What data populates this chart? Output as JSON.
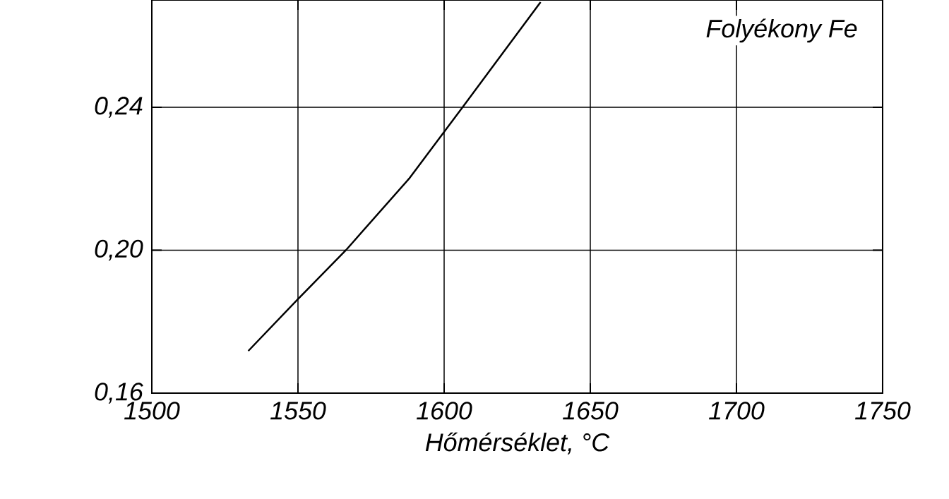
{
  "chart_data": {
    "type": "line",
    "xlabel": "Hőmérséklet, °C",
    "annotations": [
      "Folyékony Fe"
    ],
    "x": [
      1533,
      1549.5,
      1566.4,
      1588,
      1606.3,
      1617,
      1633
    ],
    "series": [
      {
        "color": "#000000",
        "values": [
          0.1718,
          0.1859,
          0.2,
          0.22,
          0.24,
          0.2518,
          0.2694
        ]
      }
    ],
    "xlim": [
      1500,
      1750
    ],
    "ylim": [
      0.16,
      0.27
    ],
    "xticks": [
      1500,
      1550,
      1600,
      1650,
      1700,
      1750
    ],
    "yticks": [
      {
        "value": 0.16,
        "label": "0,16"
      },
      {
        "value": 0.2,
        "label": "0,20"
      },
      {
        "value": 0.24,
        "label": "0,24"
      }
    ],
    "grid": true,
    "marker": "none",
    "line_style": "solid"
  }
}
